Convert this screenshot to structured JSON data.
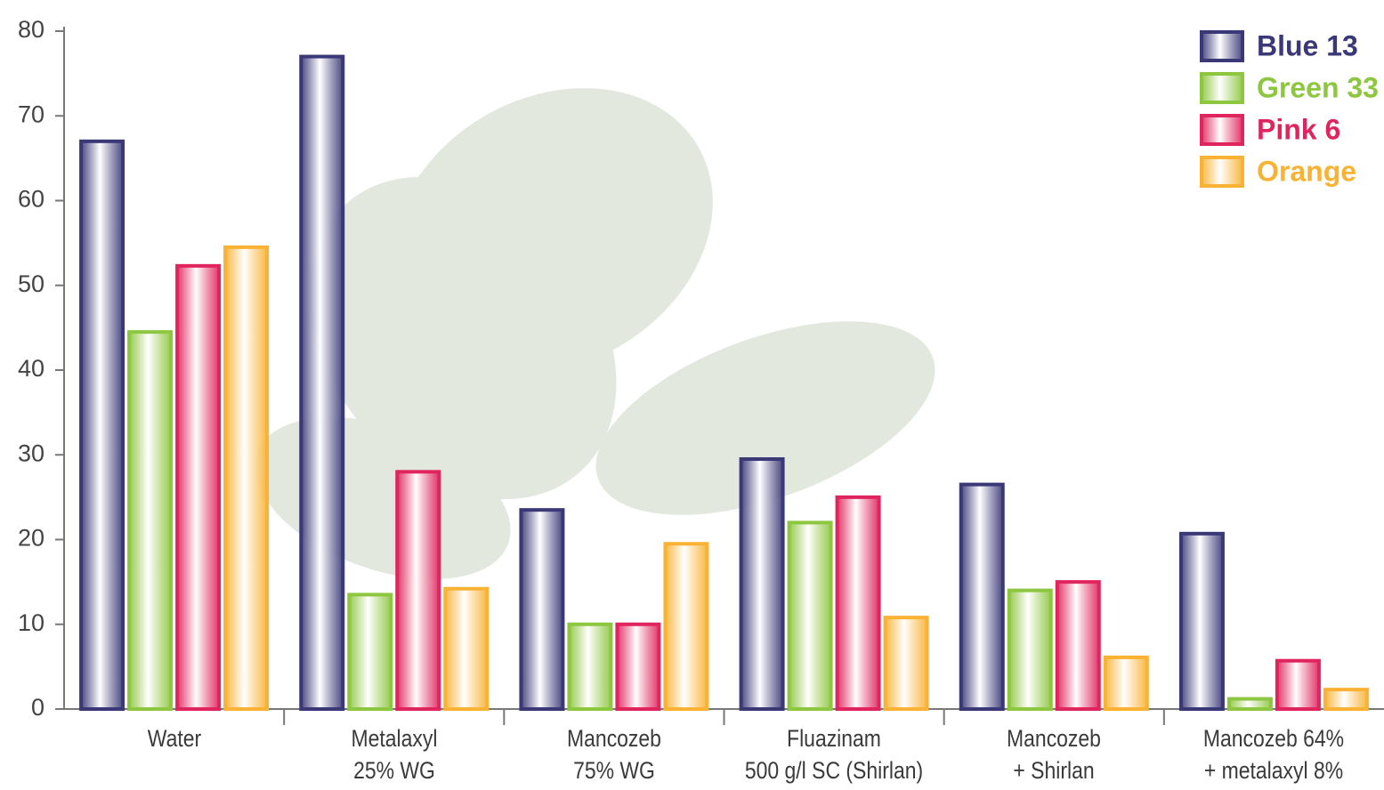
{
  "chart_data": {
    "type": "bar",
    "categories": [
      "Water",
      "Metalaxyl\n25% WG",
      "Mancozeb\n75% WG",
      "Fluazinam\n500 g/l SC (Shirlan)",
      "Mancozeb\n+ Shirlan",
      "Mancozeb 64%\n+ metalaxyl 8%"
    ],
    "series": [
      {
        "name": "Blue 13",
        "color": "#3a3877",
        "values": [
          67,
          77,
          23.5,
          29.5,
          26.5,
          20.7
        ]
      },
      {
        "name": "Green 33",
        "color": "#8dc63f",
        "values": [
          44.5,
          13.5,
          10,
          22,
          14,
          1.2
        ]
      },
      {
        "name": "Pink 6",
        "color": "#e0245e",
        "values": [
          52.3,
          28,
          10,
          25,
          15,
          5.7
        ]
      },
      {
        "name": "Orange",
        "color": "#f9b233",
        "values": [
          54.5,
          14.2,
          19.5,
          10.8,
          6.1,
          2.3
        ]
      }
    ],
    "ylim": [
      0,
      80
    ],
    "yticks": [
      0,
      10,
      20,
      30,
      40,
      50,
      60,
      70,
      80
    ],
    "grid": false,
    "legend": "top-right"
  }
}
